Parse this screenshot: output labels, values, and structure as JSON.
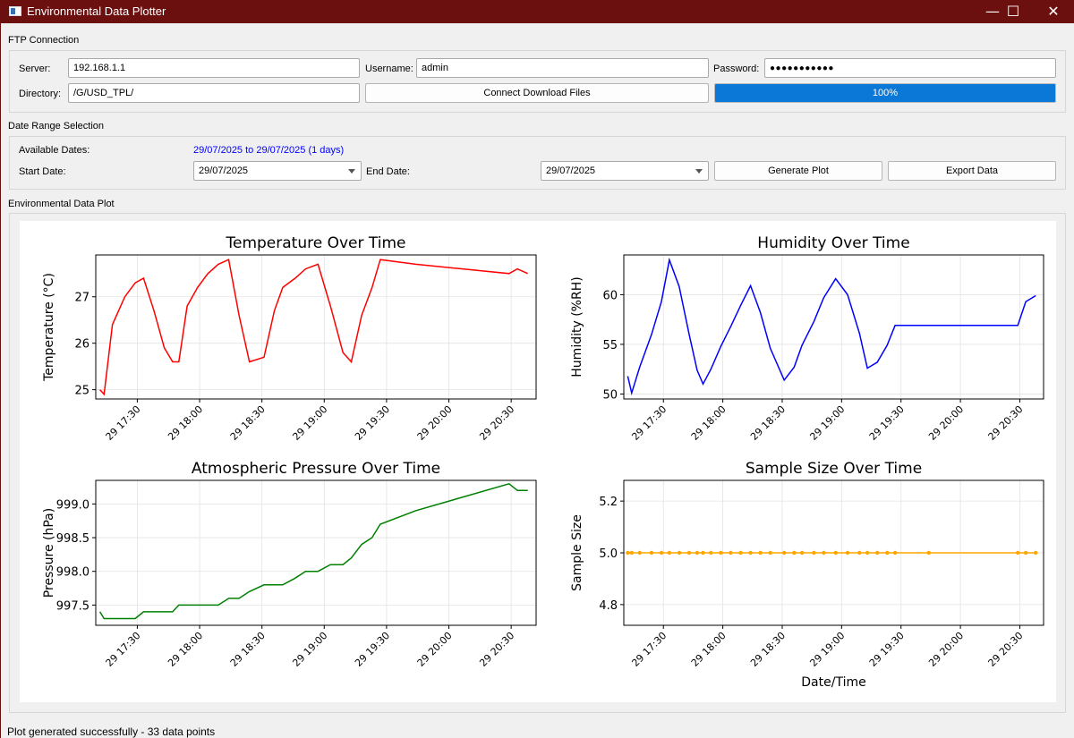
{
  "window": {
    "title": "Environmental Data Plotter",
    "minimize": "—",
    "maximize": "☐",
    "close": "✕"
  },
  "ftp": {
    "group_label": "FTP Connection",
    "server_label": "Server:",
    "server_value": "192.168.1.1",
    "username_label": "Username:",
    "username_value": "admin",
    "password_label": "Password:",
    "password_value": "●●●●●●●●●●●",
    "directory_label": "Directory:",
    "directory_value": "/G/USD_TPL/",
    "connect_button": "Connect  Download Files",
    "progress_value": 1.0,
    "progress_text": "100%"
  },
  "date_range": {
    "group_label": "Date Range Selection",
    "available_label": "Available Dates:",
    "available_value": "29/07/2025 to 29/07/2025 (1 days)",
    "start_label": "Start Date:",
    "start_value": "29/07/2025",
    "end_label": "End Date:",
    "end_value": "29/07/2025",
    "generate_button": "Generate Plot",
    "export_button": "Export Data"
  },
  "plot": {
    "group_label": "Environmental Data Plot"
  },
  "status": {
    "message": "Plot generated successfully - 33 data points"
  },
  "colors": {
    "titlebar": "#6b0f0f",
    "progress": "#0b78d7",
    "temperature": "#ff0000",
    "humidity": "#0000ff",
    "pressure": "#008000",
    "sample": "#ffa500",
    "available_dates_text": "#0000ff"
  },
  "chart_data": [
    {
      "type": "line",
      "title": "Temperature Over Time",
      "xlabel": "",
      "ylabel": "Temperature (°C)",
      "color": "#ff0000",
      "xlim": [
        "17:10",
        "20:42"
      ],
      "ylim": [
        24.8,
        27.9
      ],
      "yticks": [
        25,
        26,
        27
      ],
      "ytick_labels": [
        "25",
        "26",
        "27"
      ],
      "xtick_labels": [
        "29 17:30",
        "29 18:00",
        "29 18:30",
        "29 19:00",
        "29 19:30",
        "29 20:00",
        "29 20:30"
      ],
      "x": [
        "17:12",
        "17:14",
        "17:18",
        "17:24",
        "17:29",
        "17:33",
        "17:38",
        "17:43",
        "17:47",
        "17:50",
        "17:54",
        "17:59",
        "18:04",
        "18:09",
        "18:14",
        "18:19",
        "18:24",
        "18:31",
        "18:36",
        "18:40",
        "18:46",
        "18:51",
        "18:57",
        "19:03",
        "19:09",
        "19:13",
        "19:18",
        "19:23",
        "19:27",
        "19:44",
        "20:29",
        "20:33",
        "20:38"
      ],
      "values": [
        25.0,
        24.9,
        26.4,
        27.0,
        27.3,
        27.4,
        26.7,
        25.9,
        25.6,
        25.6,
        26.8,
        27.2,
        27.5,
        27.7,
        27.8,
        26.6,
        25.6,
        25.7,
        26.7,
        27.2,
        27.4,
        27.6,
        27.7,
        26.8,
        25.8,
        25.6,
        26.6,
        27.2,
        27.8,
        27.7,
        27.5,
        27.6,
        27.5
      ]
    },
    {
      "type": "line",
      "title": "Humidity Over Time",
      "xlabel": "",
      "ylabel": "Humidity (%RH)",
      "color": "#0000ff",
      "xlim": [
        "17:10",
        "20:42"
      ],
      "ylim": [
        49.5,
        64.0
      ],
      "yticks": [
        50,
        55,
        60
      ],
      "ytick_labels": [
        "50",
        "55",
        "60"
      ],
      "xtick_labels": [
        "29 17:30",
        "29 18:00",
        "29 18:30",
        "29 19:00",
        "29 19:30",
        "29 20:00",
        "29 20:30"
      ],
      "x": [
        "17:12",
        "17:14",
        "17:18",
        "17:24",
        "17:29",
        "17:33",
        "17:38",
        "17:43",
        "17:47",
        "17:50",
        "17:54",
        "17:59",
        "18:04",
        "18:09",
        "18:14",
        "18:19",
        "18:24",
        "18:31",
        "18:36",
        "18:40",
        "18:46",
        "18:51",
        "18:57",
        "19:03",
        "19:09",
        "19:13",
        "19:18",
        "19:23",
        "19:27",
        "19:44",
        "20:29",
        "20:33",
        "20:38"
      ],
      "values": [
        51.8,
        50.1,
        52.7,
        56.0,
        59.3,
        63.5,
        60.8,
        56.0,
        52.4,
        51.0,
        52.5,
        54.8,
        56.8,
        58.9,
        60.9,
        58.2,
        54.6,
        51.4,
        52.7,
        54.9,
        57.3,
        59.7,
        61.6,
        60.0,
        56.1,
        52.6,
        53.2,
        54.9,
        56.9,
        56.9,
        56.9,
        59.3,
        59.9
      ]
    },
    {
      "type": "line",
      "title": "Atmospheric Pressure Over Time",
      "xlabel": "",
      "ylabel": "Pressure (hPa)",
      "color": "#008000",
      "xlim": [
        "17:10",
        "20:42"
      ],
      "ylim": [
        997.2,
        999.35
      ],
      "yticks": [
        997.5,
        998.0,
        998.5,
        999.0
      ],
      "ytick_labels": [
        "997.5",
        "998.0",
        "998.5",
        "999.0"
      ],
      "xtick_labels": [
        "29 17:30",
        "29 18:00",
        "29 18:30",
        "29 19:00",
        "29 19:30",
        "29 20:00",
        "29 20:30"
      ],
      "x": [
        "17:12",
        "17:14",
        "17:18",
        "17:24",
        "17:29",
        "17:33",
        "17:38",
        "17:43",
        "17:47",
        "17:50",
        "17:54",
        "17:59",
        "18:04",
        "18:09",
        "18:14",
        "18:19",
        "18:24",
        "18:31",
        "18:36",
        "18:40",
        "18:46",
        "18:51",
        "18:57",
        "19:03",
        "19:09",
        "19:13",
        "19:18",
        "19:23",
        "19:27",
        "19:44",
        "20:29",
        "20:33",
        "20:38"
      ],
      "values": [
        997.4,
        997.3,
        997.3,
        997.3,
        997.3,
        997.4,
        997.4,
        997.4,
        997.4,
        997.5,
        997.5,
        997.5,
        997.5,
        997.5,
        997.6,
        997.6,
        997.7,
        997.8,
        997.8,
        997.8,
        997.9,
        998.0,
        998.0,
        998.1,
        998.1,
        998.2,
        998.4,
        998.5,
        998.7,
        998.9,
        999.3,
        999.2,
        999.2
      ]
    },
    {
      "type": "line",
      "title": "Sample Size Over Time",
      "xlabel": "Date/Time",
      "ylabel": "Sample Size",
      "color": "#ffa500",
      "markers": true,
      "xlim": [
        "17:10",
        "20:42"
      ],
      "ylim": [
        4.72,
        5.28
      ],
      "yticks": [
        4.8,
        5.0,
        5.2
      ],
      "ytick_labels": [
        "4.8",
        "5.0",
        "5.2"
      ],
      "xtick_labels": [
        "29 17:30",
        "29 18:00",
        "29 18:30",
        "29 19:00",
        "29 19:30",
        "29 20:00",
        "29 20:30"
      ],
      "x": [
        "17:12",
        "17:14",
        "17:18",
        "17:24",
        "17:29",
        "17:33",
        "17:38",
        "17:43",
        "17:47",
        "17:50",
        "17:54",
        "17:59",
        "18:04",
        "18:09",
        "18:14",
        "18:19",
        "18:24",
        "18:31",
        "18:36",
        "18:40",
        "18:46",
        "18:51",
        "18:57",
        "19:03",
        "19:09",
        "19:13",
        "19:18",
        "19:23",
        "19:27",
        "19:44",
        "20:29",
        "20:33",
        "20:38"
      ],
      "values": [
        5,
        5,
        5,
        5,
        5,
        5,
        5,
        5,
        5,
        5,
        5,
        5,
        5,
        5,
        5,
        5,
        5,
        5,
        5,
        5,
        5,
        5,
        5,
        5,
        5,
        5,
        5,
        5,
        5,
        5,
        5,
        5,
        5
      ]
    }
  ]
}
